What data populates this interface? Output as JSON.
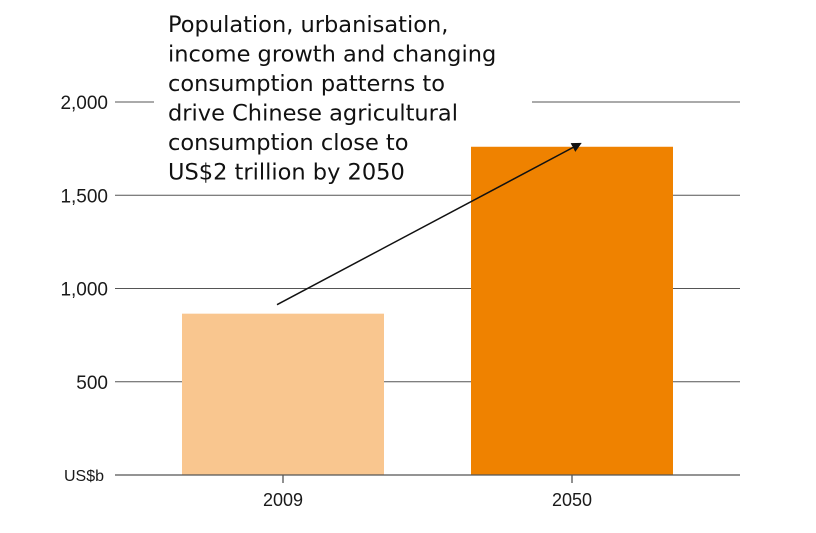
{
  "chart_data": {
    "type": "bar",
    "categories": [
      "2009",
      "2050"
    ],
    "values": [
      865,
      1760
    ],
    "colors": [
      "#f9c68f",
      "#ef8200"
    ],
    "ylim": [
      0,
      2000
    ],
    "yticks": [
      {
        "value": 500,
        "label": "500"
      },
      {
        "value": 1000,
        "label": "1,000"
      },
      {
        "value": 1500,
        "label": "1,500"
      },
      {
        "value": 2000,
        "label": "2,000"
      }
    ],
    "unit_label": "US$b",
    "grid": true,
    "annotation": {
      "lines": [
        "Population, urbanisation,",
        "income growth and changing",
        "consumption patterns to",
        "drive Chinese agricultural",
        "consumption close to",
        "US$2 trillion by 2050"
      ],
      "arrow": {
        "from_category": "2009",
        "to_category": "2050"
      }
    }
  },
  "colors": {
    "grid": "#555555",
    "axis": "#555555",
    "text": "#1a1a1a",
    "arrow": "#111111"
  }
}
